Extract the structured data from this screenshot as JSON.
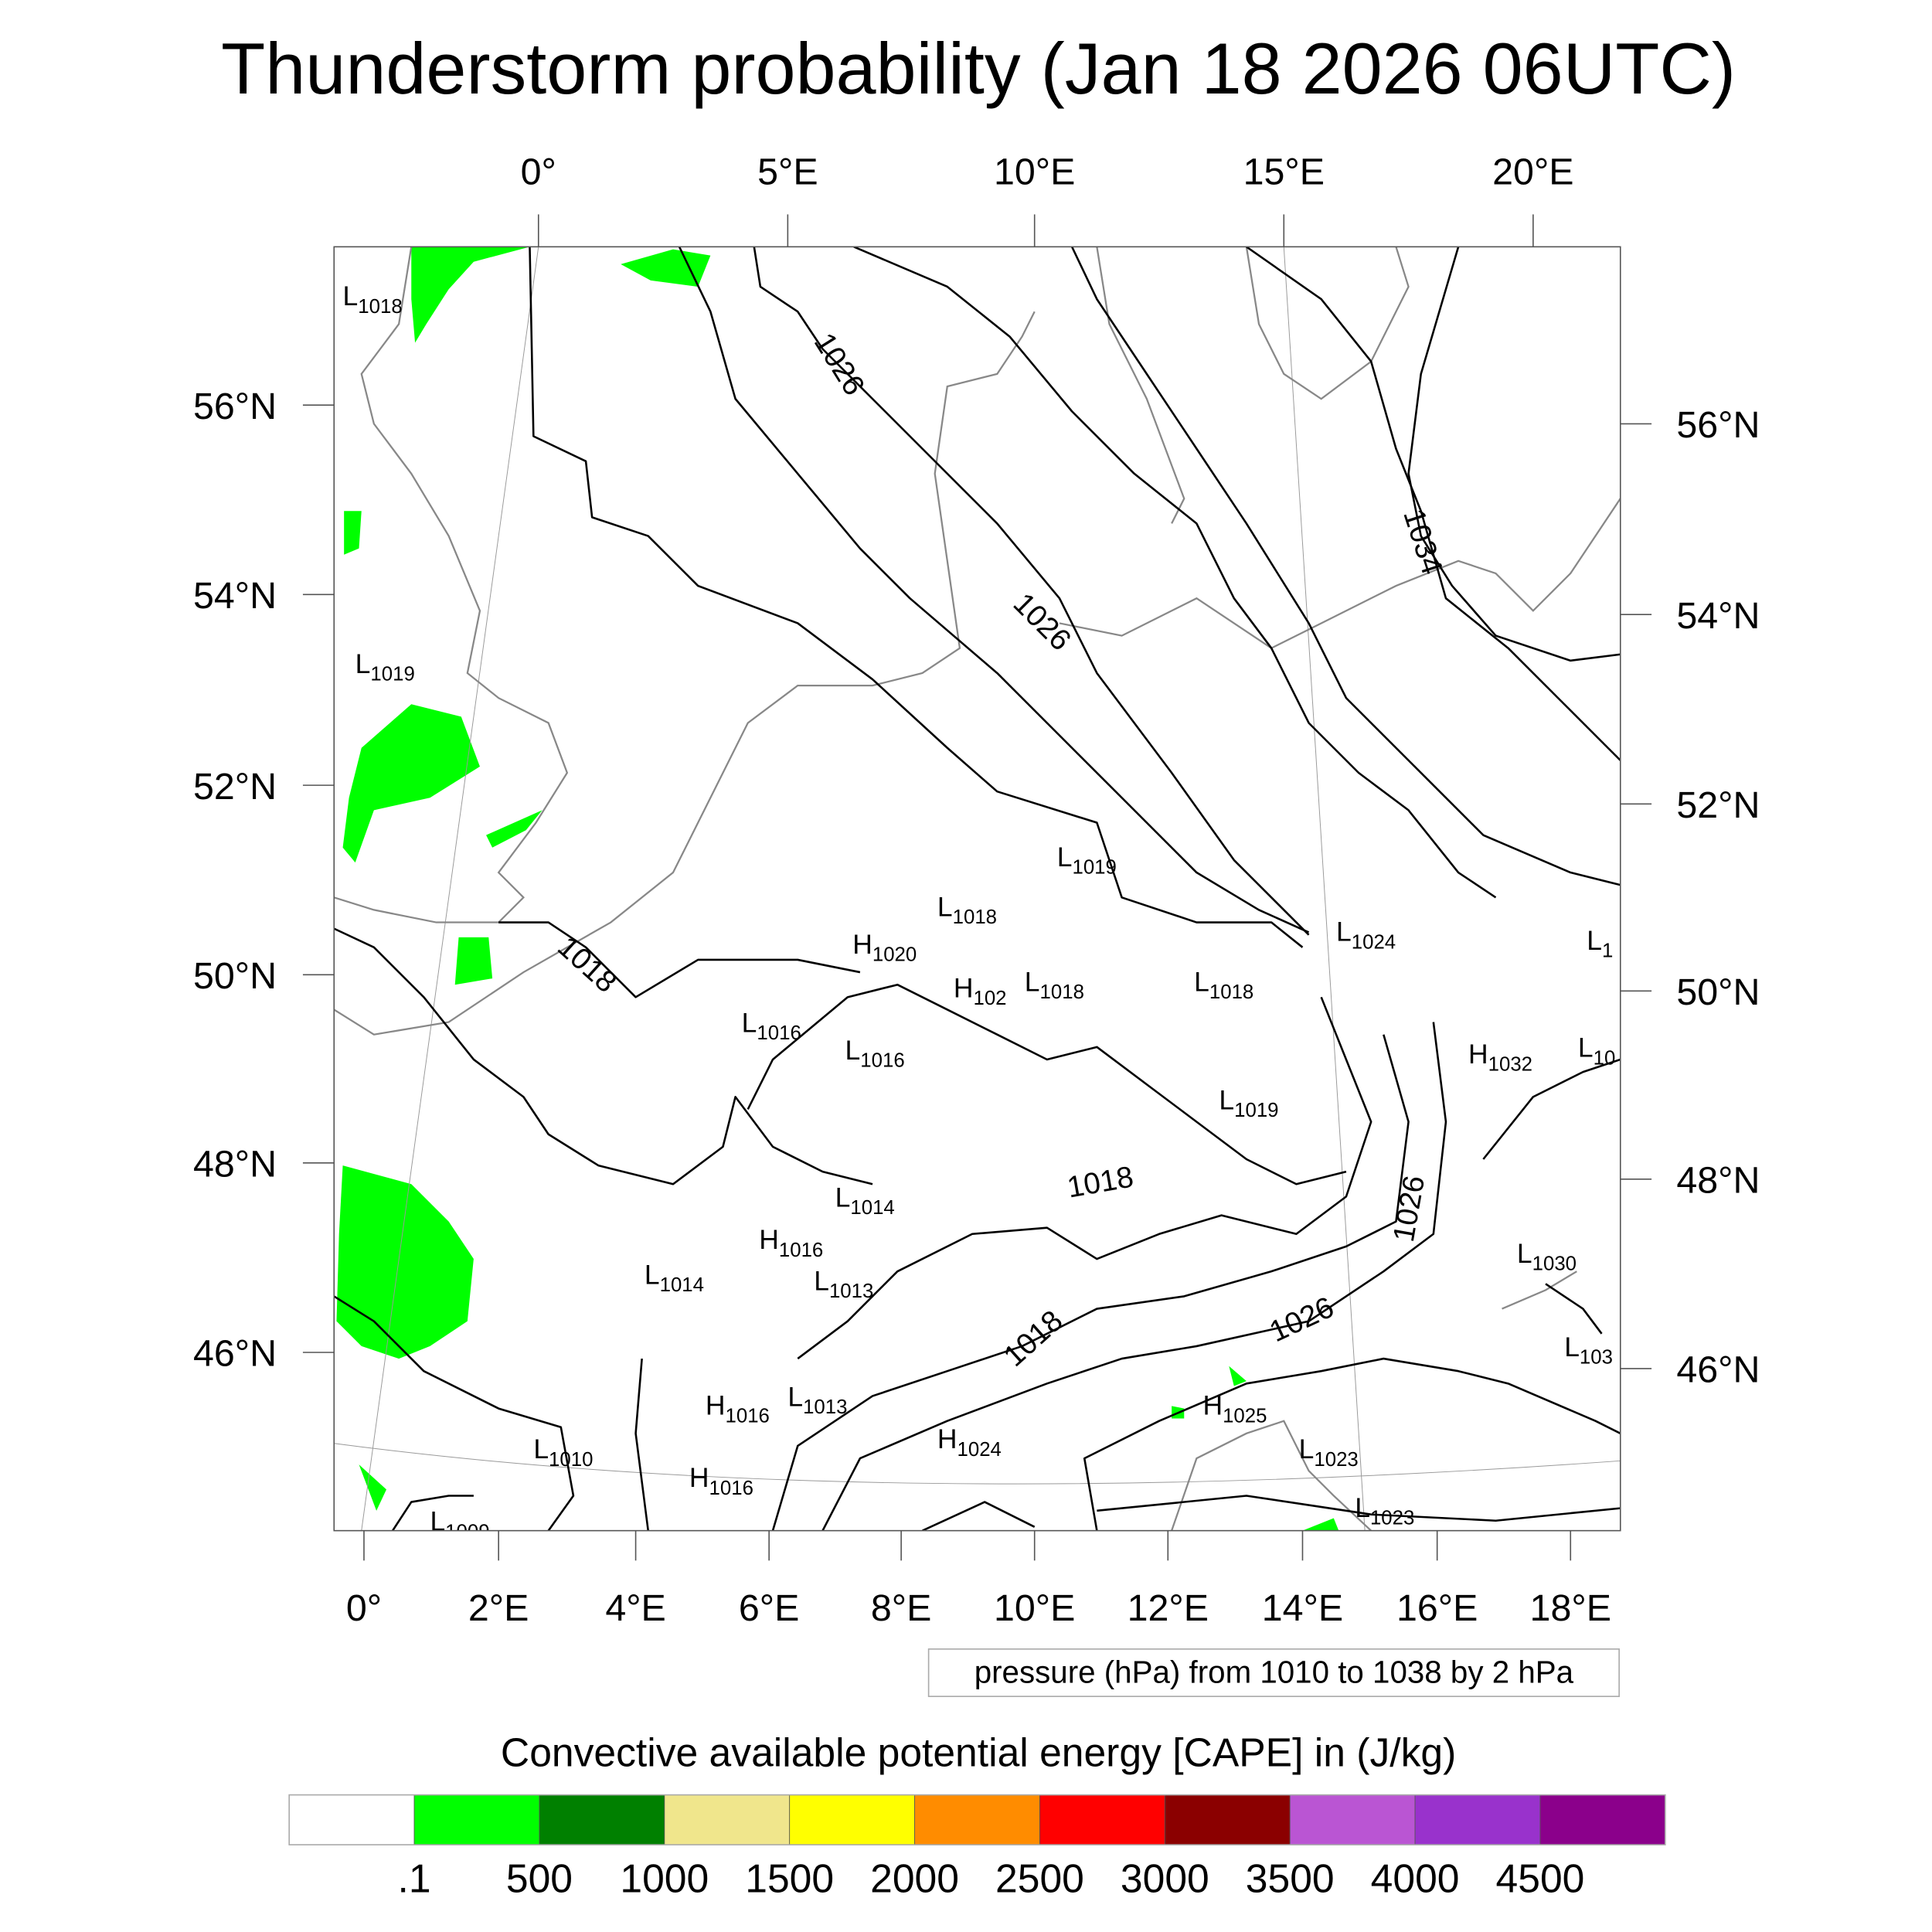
{
  "title": "Thunderstorm probability (Jan 18 2026 06UTC)",
  "axes": {
    "top": [
      "0°",
      "5°E",
      "10°E",
      "15°E",
      "20°E"
    ],
    "bottom": [
      "0°",
      "2°E",
      "4°E",
      "6°E",
      "8°E",
      "10°E",
      "12°E",
      "14°E",
      "16°E",
      "18°E"
    ],
    "left": [
      "56°N",
      "54°N",
      "52°N",
      "50°N",
      "48°N",
      "46°N"
    ],
    "right": [
      "56°N",
      "54°N",
      "52°N",
      "50°N",
      "48°N",
      "46°N"
    ]
  },
  "pressure_info": "pressure (hPa) from 1010 to 1038 by 2 hPa",
  "colorbar": {
    "title": "Convective available potential energy [CAPE] in (J/kg)",
    "colors": [
      "#ffffff",
      "#00ff00",
      "#008000",
      "#f0e68c",
      "#ffff00",
      "#ff8c00",
      "#ff0000",
      "#8b0000",
      "#ba55d3",
      "#9932cc",
      "#8b008b"
    ],
    "labels": [
      ".1",
      "500",
      "1000",
      "1500",
      "2000",
      "2500",
      "3000",
      "3500",
      "4000",
      "4500"
    ]
  },
  "pressure_centers": [
    {
      "type": "L",
      "value": "1018"
    },
    {
      "type": "L",
      "value": "1019"
    },
    {
      "type": "L",
      "value": "1019"
    },
    {
      "type": "L",
      "value": "1018"
    },
    {
      "type": "H",
      "value": "1020"
    },
    {
      "type": "H",
      "value": "102"
    },
    {
      "type": "L",
      "value": "1018"
    },
    {
      "type": "L",
      "value": "1018"
    },
    {
      "type": "L",
      "value": "1024"
    },
    {
      "type": "L",
      "value": "1"
    },
    {
      "type": "L",
      "value": "1016"
    },
    {
      "type": "L",
      "value": "1016"
    },
    {
      "type": "H",
      "value": "1032"
    },
    {
      "type": "L",
      "value": "10"
    },
    {
      "type": "L",
      "value": "1019"
    },
    {
      "type": "L",
      "value": "1014"
    },
    {
      "type": "H",
      "value": "1016"
    },
    {
      "type": "L",
      "value": "1014"
    },
    {
      "type": "L",
      "value": "1013"
    },
    {
      "type": "L",
      "value": "1030"
    },
    {
      "type": "L",
      "value": "103"
    },
    {
      "type": "H",
      "value": "1016"
    },
    {
      "type": "L",
      "value": "1013"
    },
    {
      "type": "H",
      "value": "1024"
    },
    {
      "type": "H",
      "value": "1025"
    },
    {
      "type": "L",
      "value": "1023"
    },
    {
      "type": "L",
      "value": "1010"
    },
    {
      "type": "H",
      "value": "1016"
    },
    {
      "type": "L",
      "value": "1023"
    },
    {
      "type": "L",
      "value": "1009"
    }
  ],
  "contour_labels": [
    "1026",
    "1034",
    "1026",
    "1018",
    "1018",
    "1026",
    "1018",
    "1026"
  ],
  "colors": {
    "cape_green": "#00ff00",
    "contour": "#000000",
    "coastline": "#888888"
  }
}
